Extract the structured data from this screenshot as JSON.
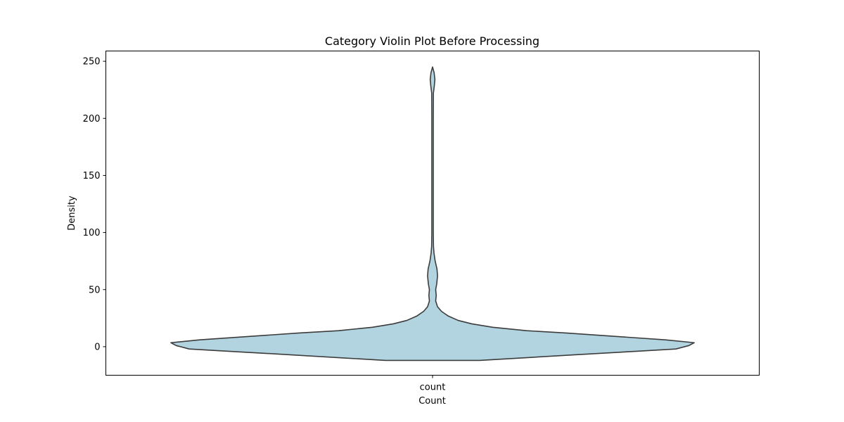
{
  "chart_data": {
    "type": "violin",
    "title": "Category Violin Plot Before Processing",
    "xlabel": "Count",
    "ylabel": "Density",
    "categories": [
      "count"
    ],
    "ylim": [
      -25,
      259
    ],
    "yticks": [
      0,
      50,
      100,
      150,
      200,
      250
    ],
    "grid": false,
    "fill_color": "#b1d4e0",
    "edge_color": "#3c3c3c",
    "violin": {
      "category": "count",
      "range": [
        -12,
        245
      ],
      "profile": [
        {
          "y": -12,
          "w": 0.18
        },
        {
          "y": -10,
          "w": 0.33
        },
        {
          "y": -7,
          "w": 0.55
        },
        {
          "y": -4,
          "w": 0.78
        },
        {
          "y": -2,
          "w": 0.93
        },
        {
          "y": 1,
          "w": 0.98
        },
        {
          "y": 3.5,
          "w": 1.0
        },
        {
          "y": 6,
          "w": 0.89
        },
        {
          "y": 9,
          "w": 0.7
        },
        {
          "y": 12,
          "w": 0.51
        },
        {
          "y": 14,
          "w": 0.36
        },
        {
          "y": 17,
          "w": 0.23
        },
        {
          "y": 20,
          "w": 0.15
        },
        {
          "y": 23,
          "w": 0.098
        },
        {
          "y": 27,
          "w": 0.059
        },
        {
          "y": 31,
          "w": 0.034
        },
        {
          "y": 35,
          "w": 0.019
        },
        {
          "y": 40,
          "w": 0.012
        },
        {
          "y": 45,
          "w": 0.014
        },
        {
          "y": 50,
          "w": 0.012
        },
        {
          "y": 55,
          "w": 0.016
        },
        {
          "y": 62,
          "w": 0.019
        },
        {
          "y": 68,
          "w": 0.017
        },
        {
          "y": 75,
          "w": 0.01
        },
        {
          "y": 82,
          "w": 0.0055
        },
        {
          "y": 88,
          "w": 0.0035
        },
        {
          "y": 100,
          "w": 0.0028
        },
        {
          "y": 150,
          "w": 0.0028
        },
        {
          "y": 200,
          "w": 0.0028
        },
        {
          "y": 222,
          "w": 0.0032
        },
        {
          "y": 228,
          "w": 0.0065
        },
        {
          "y": 234,
          "w": 0.009
        },
        {
          "y": 240,
          "w": 0.006
        },
        {
          "y": 245,
          "w": 0.0
        }
      ]
    }
  }
}
